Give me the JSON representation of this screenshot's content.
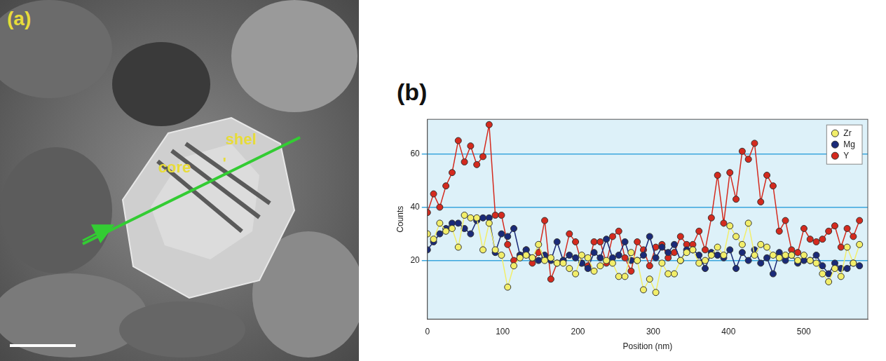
{
  "micrograph": {
    "label": "(a)",
    "texts": [
      "core",
      "shel",
      "'"
    ]
  },
  "chart_data": {
    "type": "line",
    "title": "(b)",
    "x_label": "Position (nm)",
    "y_label": "Counts",
    "x": [
      0,
      8.2,
      16.4,
      24.6,
      32.8,
      41,
      49.2,
      57.4,
      65.6,
      73.8,
      82,
      90.2,
      98.4,
      106.6,
      114.8,
      123,
      131.2,
      139.4,
      147.6,
      155.8,
      164,
      172.2,
      180.4,
      188.6,
      196.8,
      205,
      213.2,
      221.4,
      229.6,
      237.8,
      246,
      254.2,
      262.4,
      270.6,
      278.8,
      287,
      295.2,
      303.4,
      311.6,
      319.8,
      328,
      336.2,
      344.4,
      352.6,
      360.8,
      369,
      377.2,
      385.4,
      393.6,
      401.8,
      410,
      418.2,
      426.4,
      434.6,
      442.8,
      451,
      459.2,
      467.4,
      475.6,
      483.8,
      492,
      500.2,
      508.4,
      516.6,
      524.8,
      533,
      541.2,
      549.4,
      557.6,
      565.8,
      574
    ],
    "series": [
      {
        "name": "Zr",
        "color": "#f2ee6a",
        "values": [
          30,
          28,
          34,
          31,
          32,
          25,
          37,
          36,
          36,
          24,
          34,
          24,
          22,
          10,
          18,
          21,
          22,
          21,
          26,
          20,
          21,
          19,
          19,
          17,
          15,
          22,
          21,
          16,
          18,
          20,
          19,
          14,
          14,
          23,
          20,
          9,
          13,
          8,
          19,
          15,
          15,
          20,
          23,
          24,
          19,
          20,
          22,
          25,
          22,
          33,
          29,
          26,
          34,
          22,
          26,
          25,
          22,
          21,
          22,
          22,
          20,
          22,
          20,
          19,
          15,
          12,
          17,
          14,
          25,
          19,
          26
        ]
      },
      {
        "name": "Mg",
        "color": "#1a2a78",
        "values": [
          24,
          27,
          30,
          32,
          34,
          34,
          32,
          30,
          35,
          36,
          36,
          23,
          30,
          29,
          32,
          22,
          24,
          21,
          20,
          22,
          20,
          27,
          20,
          22,
          21,
          19,
          17,
          23,
          21,
          28,
          21,
          22,
          27,
          20,
          20,
          22,
          29,
          21,
          25,
          23,
          26,
          20,
          24,
          24,
          22,
          17,
          23,
          22,
          21,
          24,
          17,
          23,
          20,
          24,
          19,
          21,
          15,
          23,
          20,
          22,
          19,
          20,
          20,
          22,
          18,
          15,
          19,
          17,
          17,
          19,
          18
        ]
      },
      {
        "name": "Y",
        "color": "#d42a1e",
        "values": [
          38,
          45,
          40,
          48,
          53,
          65,
          57,
          63,
          56,
          59,
          71,
          37,
          37,
          26,
          20,
          22,
          24,
          19,
          23,
          35,
          13,
          19,
          20,
          30,
          27,
          19,
          18,
          27,
          27,
          19,
          29,
          31,
          21,
          16,
          27,
          24,
          18,
          25,
          26,
          21,
          23,
          29,
          26,
          26,
          31,
          24,
          36,
          52,
          34,
          53,
          43,
          61,
          58,
          64,
          42,
          52,
          48,
          31,
          35,
          24,
          23,
          32,
          28,
          27,
          28,
          31,
          33,
          25,
          32,
          29,
          35
        ]
      }
    ],
    "xlim": [
      0,
      585
    ],
    "xticks": [
      0,
      100,
      200,
      300,
      400,
      500
    ],
    "ylim": [
      -2,
      73
    ],
    "yticks": [
      20,
      40,
      60
    ],
    "grid": true,
    "legend": "top-right",
    "marker": "circle",
    "line_style": "solid"
  }
}
